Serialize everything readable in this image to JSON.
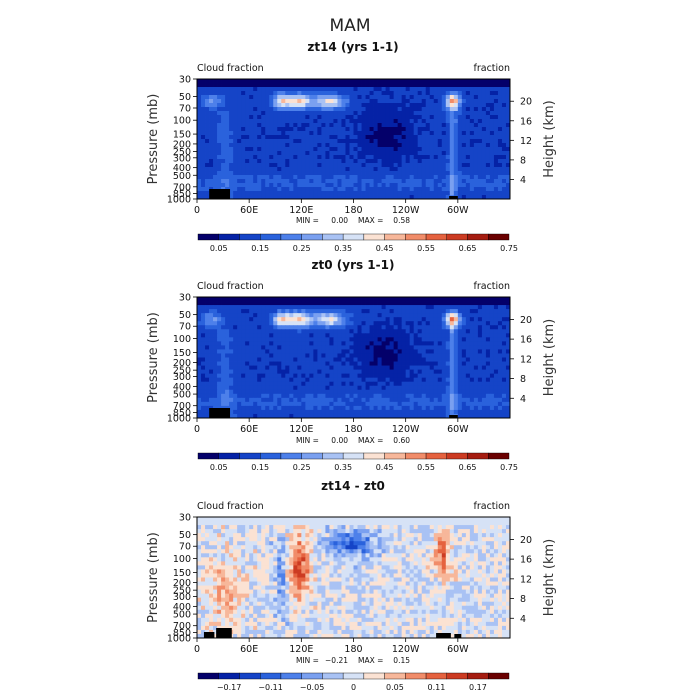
{
  "figure_title": "MAM",
  "colors": {
    "levels": [
      "#04006a",
      "#0522a6",
      "#1544c7",
      "#2a62dc",
      "#4d80ea",
      "#7aa0f0",
      "#a9c2f4",
      "#d6e2f6",
      "#fbe2d3",
      "#f7b79a",
      "#f18c69",
      "#e5623f",
      "#cc3b22",
      "#a51c10",
      "#6a0000"
    ],
    "diff_levels": [
      "#04006a",
      "#0522a6",
      "#1544c7",
      "#2a62dc",
      "#4d80ea",
      "#7aa0f0",
      "#a9c2f4",
      "#d6e2f6",
      "#fbe2d3",
      "#f7b79a",
      "#f18c69",
      "#e5623f",
      "#cc3b22",
      "#a51c10",
      "#6a0000"
    ]
  },
  "chart_data": [
    {
      "type": "heatmap",
      "title": "zt14 (yrs 1-1)",
      "left_label": "Cloud fraction",
      "right_label": "fraction",
      "ylabel": "Pressure (mb)",
      "ylabel_right": "Height (km)",
      "x_ticks": [
        "0",
        "60E",
        "120E",
        "180",
        "120W",
        "60W"
      ],
      "x_tick_values": [
        0,
        60,
        120,
        180,
        240,
        300
      ],
      "xlim": [
        0,
        360
      ],
      "y_ticks": [
        "30",
        "50",
        "70",
        "100",
        "150",
        "200",
        "250",
        "300",
        "400",
        "500",
        "700",
        "850",
        "1000"
      ],
      "y_tick_values": [
        30,
        50,
        70,
        100,
        150,
        200,
        250,
        300,
        400,
        500,
        700,
        850,
        1000
      ],
      "ylim": [
        1000,
        30
      ],
      "y_scale": "log",
      "height_ticks": [
        "20",
        "16",
        "12",
        "8",
        "4"
      ],
      "height_tick_values": [
        20,
        16,
        12,
        8,
        4
      ],
      "min_label": "MIN =",
      "min_value": "0.00",
      "max_label": "MAX =",
      "max_value": "0.58",
      "colorbar_ticks": [
        "0.05",
        "0.15",
        "0.25",
        "0.35",
        "0.45",
        "0.55",
        "0.65",
        "0.75"
      ],
      "colorbar_range": [
        0,
        0.8
      ]
    },
    {
      "type": "heatmap",
      "title": "zt0 (yrs 1-1)",
      "left_label": "Cloud fraction",
      "right_label": "fraction",
      "ylabel": "Pressure (mb)",
      "ylabel_right": "Height (km)",
      "x_ticks": [
        "0",
        "60E",
        "120E",
        "180",
        "120W",
        "60W"
      ],
      "x_tick_values": [
        0,
        60,
        120,
        180,
        240,
        300
      ],
      "xlim": [
        0,
        360
      ],
      "y_ticks": [
        "30",
        "50",
        "70",
        "100",
        "150",
        "200",
        "250",
        "300",
        "400",
        "500",
        "700",
        "850",
        "1000"
      ],
      "y_tick_values": [
        30,
        50,
        70,
        100,
        150,
        200,
        250,
        300,
        400,
        500,
        700,
        850,
        1000
      ],
      "ylim": [
        1000,
        30
      ],
      "y_scale": "log",
      "height_ticks": [
        "20",
        "16",
        "12",
        "8",
        "4"
      ],
      "height_tick_values": [
        20,
        16,
        12,
        8,
        4
      ],
      "min_label": "MIN =",
      "min_value": "0.00",
      "max_label": "MAX =",
      "max_value": "0.60",
      "colorbar_ticks": [
        "0.05",
        "0.15",
        "0.25",
        "0.35",
        "0.45",
        "0.55",
        "0.65",
        "0.75"
      ],
      "colorbar_range": [
        0,
        0.8
      ]
    },
    {
      "type": "heatmap",
      "title": "zt14 - zt0",
      "left_label": "Cloud fraction",
      "right_label": "fraction",
      "ylabel": "Pressure (mb)",
      "ylabel_right": "Height (km)",
      "x_ticks": [
        "0",
        "60E",
        "120E",
        "180",
        "120W",
        "60W"
      ],
      "x_tick_values": [
        0,
        60,
        120,
        180,
        240,
        300
      ],
      "xlim": [
        0,
        360
      ],
      "y_ticks": [
        "30",
        "50",
        "70",
        "100",
        "150",
        "200",
        "250",
        "300",
        "400",
        "500",
        "700",
        "850",
        "1000"
      ],
      "y_tick_values": [
        30,
        50,
        70,
        100,
        150,
        200,
        250,
        300,
        400,
        500,
        700,
        850,
        1000
      ],
      "ylim": [
        1000,
        30
      ],
      "y_scale": "log",
      "height_ticks": [
        "20",
        "16",
        "12",
        "8",
        "4"
      ],
      "height_tick_values": [
        20,
        16,
        12,
        8,
        4
      ],
      "min_label": "MIN =",
      "min_value": "−0.21",
      "max_label": "MAX =",
      "max_value": "0.15",
      "colorbar_ticks": [
        "−0.17",
        "−0.11",
        "−0.05",
        "0",
        "0.05",
        "0.11",
        "0.17"
      ],
      "colorbar_range": [
        -0.2,
        0.2
      ]
    }
  ]
}
